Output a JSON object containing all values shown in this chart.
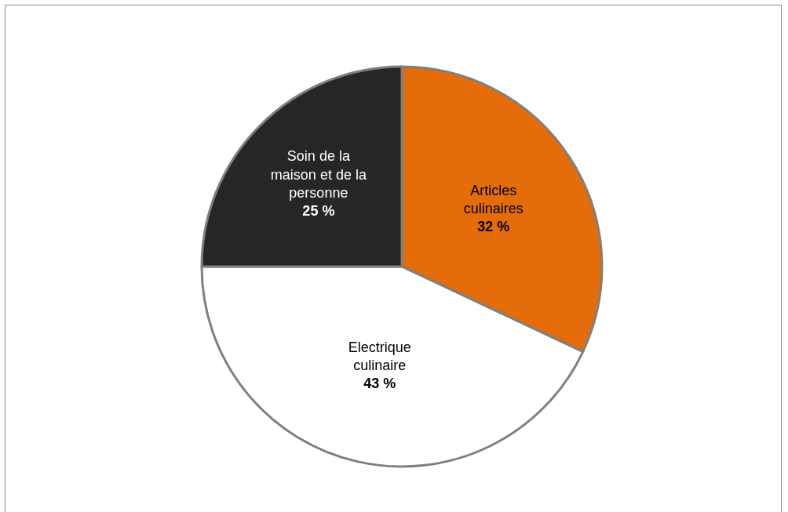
{
  "chart_data": {
    "type": "pie",
    "categories": [
      "Articles culinaires",
      "Electrique culinaire",
      "Soin de la maison et de la personne"
    ],
    "values": [
      32,
      43,
      25
    ],
    "value_labels": [
      "32 %",
      "43 %",
      "25 %"
    ],
    "colors": [
      "#e46c0a",
      "#ffffff",
      "#262626"
    ],
    "legend": false
  }
}
